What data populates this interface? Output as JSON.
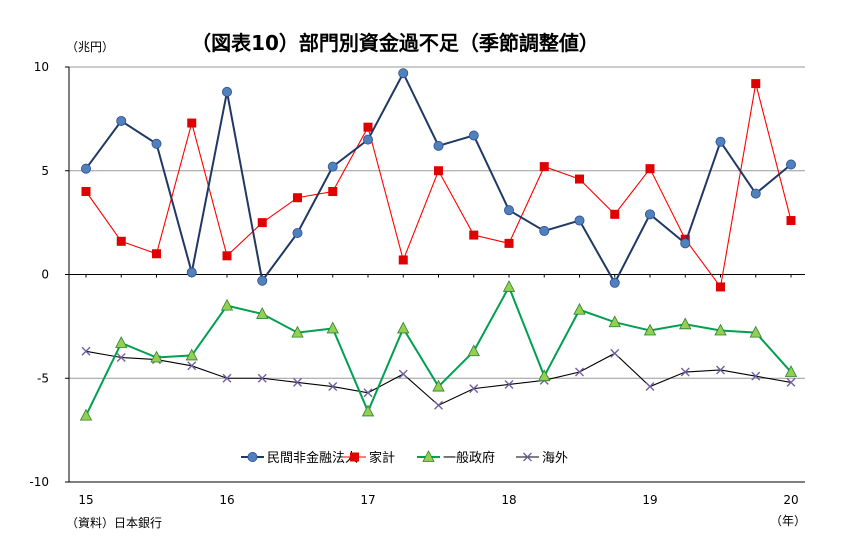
{
  "chart_data": {
    "type": "line",
    "title": "（図表10）部門別資金過不足（季節調整値）",
    "ylabel": "（兆円）",
    "xlabel": "（年）",
    "source": "（資料）日本銀行",
    "ylim": [
      -10,
      10
    ],
    "yticks": [
      10,
      5,
      0,
      -5,
      -10
    ],
    "xticks": [
      "15",
      "16",
      "17",
      "18",
      "19",
      "20"
    ],
    "grid": "horizontal",
    "legend_position": "bottom-center",
    "series": [
      {
        "name": "民間非金融法人",
        "color": "#1f3864",
        "marker_color": "#4f81bd",
        "marker": "circle",
        "values": [
          5.1,
          7.4,
          6.3,
          0.1,
          8.8,
          -0.3,
          2.0,
          5.2,
          6.5,
          9.7,
          6.2,
          6.7,
          3.1,
          2.1,
          2.6,
          -0.4,
          2.9,
          1.5,
          6.4,
          3.9,
          5.3
        ]
      },
      {
        "name": "家計",
        "color": "#ff0000",
        "marker_color": "#e00000",
        "marker": "square",
        "values": [
          4.0,
          1.6,
          1.0,
          7.3,
          0.9,
          2.5,
          3.7,
          4.0,
          7.1,
          0.7,
          5.0,
          1.9,
          1.5,
          5.2,
          4.6,
          2.9,
          5.1,
          1.7,
          -0.6,
          9.2,
          2.6
        ]
      },
      {
        "name": "一般政府",
        "color": "#00a050",
        "marker_color": "#92d050",
        "marker": "triangle",
        "values": [
          -6.8,
          -3.3,
          -4.0,
          -3.9,
          -1.5,
          -1.9,
          -2.8,
          -2.6,
          -6.6,
          -2.6,
          -5.4,
          -3.7,
          -0.6,
          -4.9,
          -1.7,
          -2.3,
          -2.7,
          -2.4,
          -2.7,
          -2.8,
          -4.7
        ]
      },
      {
        "name": "海外",
        "color": "#000000",
        "marker_color": "#7060a0",
        "marker": "x",
        "values": [
          -3.7,
          -4.0,
          -4.1,
          -4.4,
          -5.0,
          -5.0,
          -5.2,
          -5.4,
          -5.7,
          -4.8,
          -6.3,
          -5.5,
          -5.3,
          -5.1,
          -4.7,
          -3.8,
          -5.4,
          -4.7,
          -4.6,
          -4.9,
          -5.2
        ]
      }
    ]
  }
}
